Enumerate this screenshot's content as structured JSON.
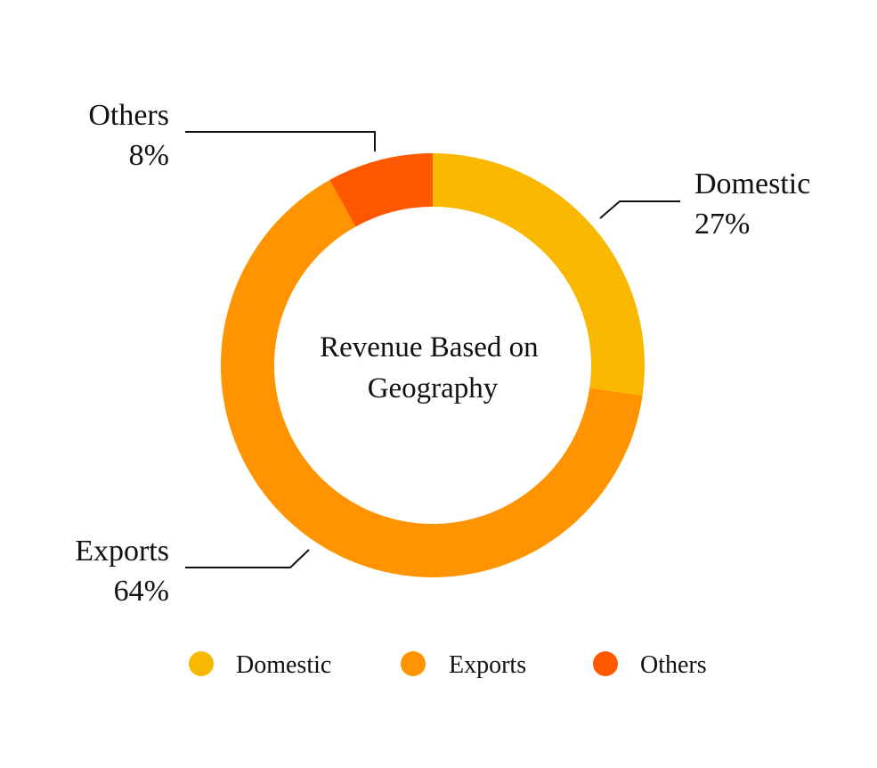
{
  "chart_data": {
    "type": "pie",
    "donut": true,
    "center_title": [
      "Revenue Based on",
      "Geography"
    ],
    "categories": [
      "Domestic",
      "Exports",
      "Others"
    ],
    "values": [
      27,
      64,
      8
    ],
    "value_labels": [
      "27%",
      "64%",
      "8%"
    ],
    "colors": [
      "#F8B800",
      "#FF9400",
      "#FF5800"
    ],
    "legend": {
      "position": "bottom",
      "entries": [
        "Domestic",
        "Exports",
        "Others"
      ]
    }
  }
}
